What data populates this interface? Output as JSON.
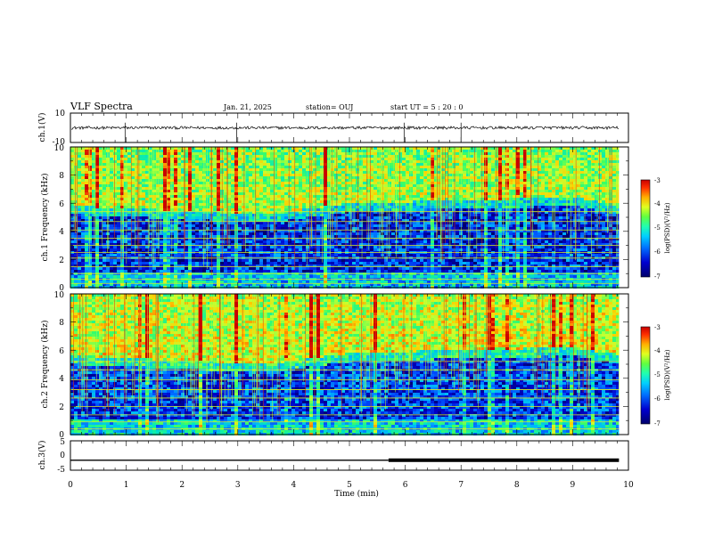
{
  "header": {
    "title": "VLF Spectra",
    "date": "Jan. 21, 2025",
    "station": "station= OUJ",
    "start": "start UT =  5 : 20 : 0"
  },
  "colors": {
    "colormap": [
      "#00006a",
      "#0000c8",
      "#0050ff",
      "#00b4ff",
      "#00e8c0",
      "#40ff60",
      "#c8ff30",
      "#ffd000",
      "#ff5000",
      "#c80000"
    ],
    "trace": "#000000"
  },
  "chart_data": [
    {
      "type": "line",
      "panel": "ch1-waveform",
      "ylabel": "ch.1(V)",
      "ylim": [
        -10,
        10
      ],
      "yticks": [
        "10",
        "-10"
      ],
      "xlim": [
        0,
        10
      ],
      "baseline": 0,
      "noise_amplitude": 1,
      "spikes_at_min": [
        0.98,
        2.98,
        5.98,
        7.0
      ],
      "grid": false
    },
    {
      "type": "heatmap",
      "panel": "ch1-spectrogram",
      "ylabel": "ch.1 Frequency (kHz)",
      "ylim": [
        0,
        10
      ],
      "yticks": [
        "0",
        "2",
        "4",
        "6",
        "8",
        "10"
      ],
      "xlim": [
        0,
        10
      ],
      "data_extent_min": 9.83,
      "colorbar": {
        "label": "log(PSD)(V²/Hz)",
        "ticks": [
          "-3",
          "-4",
          "-5",
          "-6",
          "-7"
        ],
        "range": [
          -7,
          -3
        ]
      },
      "cutoff_khz_by_minute": [
        [
          0,
          5.8
        ],
        [
          3.5,
          5.2
        ],
        [
          5,
          6.0
        ],
        [
          7,
          6.2
        ],
        [
          9,
          6.4
        ],
        [
          9.83,
          5.8
        ]
      ],
      "upper_band_level": -4.4,
      "lower_band_level": -6.6,
      "harmonic_lines_khz": [
        0.3,
        0.6,
        1.0,
        1.5,
        2.1,
        2.5,
        3.0,
        3.5,
        4.1,
        4.7,
        5.4
      ]
    },
    {
      "type": "heatmap",
      "panel": "ch2-spectrogram",
      "ylabel": "ch.2 Frequency (kHz)",
      "ylim": [
        0,
        10
      ],
      "yticks": [
        "0",
        "2",
        "4",
        "6",
        "8",
        "10"
      ],
      "xlim": [
        0,
        10
      ],
      "data_extent_min": 9.83,
      "colorbar": {
        "label": "log(PSD)(V²/Hz)",
        "ticks": [
          "-3",
          "-4",
          "-5",
          "-6",
          "-7"
        ],
        "range": [
          -7,
          -3
        ]
      },
      "cutoff_khz_by_minute": [
        [
          0,
          5.6
        ],
        [
          3.5,
          5.0
        ],
        [
          5,
          5.8
        ],
        [
          7,
          6.0
        ],
        [
          9,
          6.2
        ],
        [
          9.83,
          5.6
        ]
      ],
      "upper_band_level": -4.2,
      "lower_band_level": -6.5,
      "harmonic_lines_khz": [
        0.4,
        0.9,
        1.4,
        2.0,
        2.6,
        3.2,
        3.9,
        4.6,
        5.2
      ]
    },
    {
      "type": "line",
      "panel": "ch3-waveform",
      "ylabel": "ch.3(V)",
      "ylim": [
        -5,
        5
      ],
      "yticks": [
        "5",
        "0",
        "-5"
      ],
      "xlim": [
        0,
        10
      ],
      "xlabel": "Time (min)",
      "xticks": [
        "0",
        "1",
        "2",
        "3",
        "4",
        "5",
        "6",
        "7",
        "8",
        "9",
        "10"
      ],
      "level_v": -1.6,
      "thin_until_min": 5.7,
      "data_extent_min": 9.83,
      "grid": false
    }
  ]
}
